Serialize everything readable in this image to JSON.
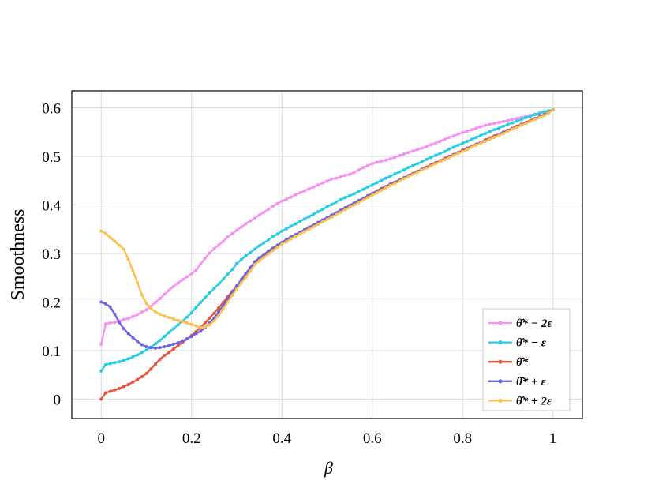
{
  "chart_data": {
    "type": "line",
    "title": "",
    "xlabel": "β",
    "ylabel": "Smoothness",
    "xlim": [
      -0.065,
      1.065
    ],
    "ylim": [
      -0.04,
      0.635
    ],
    "xticks": [
      0,
      0.2,
      0.4,
      0.6,
      0.8,
      1
    ],
    "xtick_labels": [
      "0",
      "0.2",
      "0.4",
      "0.6",
      "0.8",
      "1"
    ],
    "yticks": [
      0,
      0.1,
      0.2,
      0.3,
      0.4,
      0.5,
      0.6
    ],
    "ytick_labels": [
      "0",
      "0.1",
      "0.2",
      "0.3",
      "0.4",
      "0.5",
      "0.6"
    ],
    "grid": true,
    "legend_position": "bottom-right",
    "x": [
      0,
      0.01,
      0.02,
      0.03,
      0.04,
      0.05,
      0.06,
      0.07,
      0.08,
      0.09,
      0.1,
      0.11,
      0.12,
      0.13,
      0.14,
      0.15,
      0.16,
      0.17,
      0.18,
      0.19,
      0.2,
      0.21,
      0.22,
      0.23,
      0.24,
      0.25,
      0.26,
      0.27,
      0.28,
      0.29,
      0.3,
      0.31,
      0.32,
      0.33,
      0.34,
      0.35,
      0.36,
      0.37,
      0.38,
      0.39,
      0.4,
      0.41,
      0.42,
      0.43,
      0.44,
      0.45,
      0.46,
      0.47,
      0.48,
      0.49,
      0.5,
      0.51,
      0.52,
      0.53,
      0.54,
      0.55,
      0.56,
      0.57,
      0.58,
      0.59,
      0.6,
      0.61,
      0.62,
      0.63,
      0.64,
      0.65,
      0.66,
      0.67,
      0.68,
      0.69,
      0.7,
      0.71,
      0.72,
      0.73,
      0.74,
      0.75,
      0.76,
      0.77,
      0.78,
      0.79,
      0.8,
      0.81,
      0.82,
      0.83,
      0.84,
      0.85,
      0.86,
      0.87,
      0.88,
      0.89,
      0.9,
      0.91,
      0.92,
      0.93,
      0.94,
      0.95,
      0.96,
      0.97,
      0.98,
      0.99,
      1
    ],
    "series": [
      {
        "name": "θ̂* − 2ε",
        "color": "#f78ff4",
        "values": [
          0.113,
          0.155,
          0.157,
          0.158,
          0.161,
          0.164,
          0.166,
          0.17,
          0.174,
          0.179,
          0.184,
          0.191,
          0.199,
          0.207,
          0.216,
          0.224,
          0.232,
          0.239,
          0.246,
          0.252,
          0.258,
          0.266,
          0.278,
          0.29,
          0.301,
          0.31,
          0.317,
          0.325,
          0.334,
          0.341,
          0.348,
          0.354,
          0.361,
          0.367,
          0.373,
          0.379,
          0.385,
          0.391,
          0.397,
          0.403,
          0.408,
          0.412,
          0.416,
          0.421,
          0.425,
          0.429,
          0.433,
          0.437,
          0.441,
          0.445,
          0.449,
          0.453,
          0.455,
          0.458,
          0.461,
          0.463,
          0.467,
          0.472,
          0.477,
          0.481,
          0.485,
          0.488,
          0.49,
          0.492,
          0.495,
          0.498,
          0.502,
          0.505,
          0.508,
          0.511,
          0.514,
          0.517,
          0.52,
          0.524,
          0.527,
          0.531,
          0.535,
          0.539,
          0.542,
          0.546,
          0.549,
          0.552,
          0.555,
          0.558,
          0.561,
          0.564,
          0.566,
          0.568,
          0.57,
          0.572,
          0.574,
          0.576,
          0.578,
          0.58,
          0.583,
          0.585,
          0.587,
          0.589,
          0.591,
          0.593,
          0.596
        ]
      },
      {
        "name": "θ̂* − ε",
        "color": "#24cde3",
        "values": [
          0.058,
          0.071,
          0.073,
          0.075,
          0.077,
          0.08,
          0.083,
          0.087,
          0.091,
          0.096,
          0.101,
          0.107,
          0.114,
          0.121,
          0.129,
          0.137,
          0.145,
          0.153,
          0.161,
          0.169,
          0.178,
          0.189,
          0.199,
          0.209,
          0.219,
          0.228,
          0.237,
          0.247,
          0.257,
          0.267,
          0.279,
          0.287,
          0.295,
          0.302,
          0.309,
          0.316,
          0.322,
          0.328,
          0.334,
          0.34,
          0.346,
          0.351,
          0.356,
          0.361,
          0.366,
          0.371,
          0.376,
          0.381,
          0.386,
          0.391,
          0.396,
          0.401,
          0.406,
          0.411,
          0.415,
          0.419,
          0.423,
          0.428,
          0.432,
          0.437,
          0.441,
          0.446,
          0.45,
          0.455,
          0.459,
          0.464,
          0.468,
          0.472,
          0.477,
          0.481,
          0.485,
          0.489,
          0.494,
          0.498,
          0.502,
          0.506,
          0.51,
          0.515,
          0.519,
          0.523,
          0.527,
          0.531,
          0.535,
          0.539,
          0.543,
          0.547,
          0.551,
          0.555,
          0.558,
          0.562,
          0.566,
          0.569,
          0.573,
          0.576,
          0.58,
          0.583,
          0.586,
          0.589,
          0.592,
          0.594,
          0.596
        ]
      },
      {
        "name": "θ̂*",
        "color": "#e5533d",
        "values": [
          0.0,
          0.013,
          0.016,
          0.019,
          0.022,
          0.026,
          0.03,
          0.035,
          0.04,
          0.046,
          0.053,
          0.062,
          0.072,
          0.082,
          0.09,
          0.096,
          0.103,
          0.11,
          0.117,
          0.124,
          0.131,
          0.139,
          0.148,
          0.157,
          0.167,
          0.177,
          0.188,
          0.199,
          0.211,
          0.222,
          0.233,
          0.244,
          0.256,
          0.268,
          0.28,
          0.288,
          0.295,
          0.302,
          0.309,
          0.316,
          0.322,
          0.327,
          0.333,
          0.338,
          0.343,
          0.348,
          0.353,
          0.358,
          0.363,
          0.368,
          0.373,
          0.379,
          0.384,
          0.389,
          0.394,
          0.399,
          0.404,
          0.409,
          0.414,
          0.419,
          0.424,
          0.429,
          0.434,
          0.438,
          0.443,
          0.447,
          0.452,
          0.456,
          0.461,
          0.465,
          0.469,
          0.474,
          0.478,
          0.483,
          0.487,
          0.491,
          0.496,
          0.5,
          0.504,
          0.508,
          0.513,
          0.517,
          0.521,
          0.525,
          0.529,
          0.534,
          0.538,
          0.542,
          0.546,
          0.55,
          0.554,
          0.558,
          0.562,
          0.566,
          0.57,
          0.574,
          0.578,
          0.582,
          0.586,
          0.59,
          0.596
        ]
      },
      {
        "name": "θ̂* + ε",
        "color": "#6a63e4",
        "values": [
          0.2,
          0.196,
          0.19,
          0.175,
          0.158,
          0.145,
          0.135,
          0.127,
          0.119,
          0.112,
          0.108,
          0.106,
          0.105,
          0.106,
          0.108,
          0.11,
          0.113,
          0.116,
          0.12,
          0.124,
          0.129,
          0.135,
          0.14,
          0.147,
          0.157,
          0.167,
          0.18,
          0.193,
          0.206,
          0.22,
          0.233,
          0.246,
          0.259,
          0.271,
          0.283,
          0.291,
          0.298,
          0.305,
          0.311,
          0.317,
          0.323,
          0.329,
          0.334,
          0.339,
          0.344,
          0.349,
          0.354,
          0.359,
          0.364,
          0.369,
          0.374,
          0.379,
          0.384,
          0.389,
          0.394,
          0.399,
          0.404,
          0.409,
          0.413,
          0.418,
          0.423,
          0.428,
          0.432,
          0.437,
          0.442,
          0.446,
          0.451,
          0.455,
          0.46,
          0.464,
          0.468,
          0.473,
          0.477,
          0.481,
          0.486,
          0.49,
          0.494,
          0.499,
          0.503,
          0.507,
          0.511,
          0.516,
          0.52,
          0.524,
          0.528,
          0.532,
          0.536,
          0.54,
          0.545,
          0.549,
          0.553,
          0.557,
          0.561,
          0.565,
          0.569,
          0.573,
          0.577,
          0.581,
          0.585,
          0.589,
          0.596
        ]
      },
      {
        "name": "θ̂* + 2ε",
        "color": "#fbc04d",
        "values": [
          0.346,
          0.341,
          0.333,
          0.325,
          0.317,
          0.309,
          0.288,
          0.265,
          0.24,
          0.215,
          0.197,
          0.187,
          0.18,
          0.175,
          0.171,
          0.168,
          0.165,
          0.162,
          0.16,
          0.157,
          0.154,
          0.151,
          0.148,
          0.149,
          0.153,
          0.161,
          0.172,
          0.186,
          0.2,
          0.214,
          0.227,
          0.239,
          0.251,
          0.264,
          0.277,
          0.285,
          0.292,
          0.299,
          0.306,
          0.313,
          0.319,
          0.324,
          0.33,
          0.335,
          0.34,
          0.345,
          0.35,
          0.355,
          0.36,
          0.365,
          0.37,
          0.375,
          0.38,
          0.385,
          0.39,
          0.395,
          0.4,
          0.405,
          0.41,
          0.415,
          0.42,
          0.425,
          0.43,
          0.435,
          0.44,
          0.444,
          0.449,
          0.454,
          0.458,
          0.463,
          0.467,
          0.472,
          0.476,
          0.48,
          0.485,
          0.489,
          0.493,
          0.497,
          0.502,
          0.506,
          0.51,
          0.514,
          0.519,
          0.523,
          0.527,
          0.531,
          0.535,
          0.539,
          0.543,
          0.547,
          0.552,
          0.556,
          0.56,
          0.564,
          0.568,
          0.572,
          0.576,
          0.58,
          0.584,
          0.589,
          0.596
        ]
      }
    ]
  }
}
